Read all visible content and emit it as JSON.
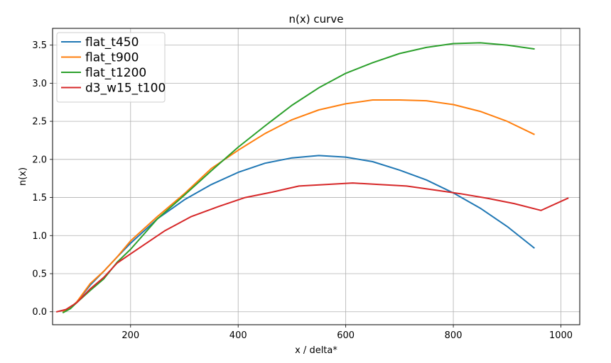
{
  "chart_data": {
    "type": "line",
    "title": "n(x) curve",
    "xlabel": "x / delta*",
    "ylabel": "n(x)",
    "xlim": [
      55,
      1035
    ],
    "ylim": [
      -0.17,
      3.72
    ],
    "xticks": [
      200,
      400,
      600,
      800,
      1000
    ],
    "yticks": [
      0.0,
      0.5,
      1.0,
      1.5,
      2.0,
      2.5,
      3.0,
      3.5
    ],
    "xtick_labels": [
      "200",
      "400",
      "600",
      "800",
      "1000"
    ],
    "ytick_labels": [
      "0.0",
      "0.5",
      "1.0",
      "1.5",
      "2.0",
      "2.5",
      "3.0",
      "3.5"
    ],
    "grid": true,
    "legend": "upper-left",
    "series": [
      {
        "name": "flat_t450",
        "color": "#1f77b4",
        "x": [
          75,
          88,
          100,
          125,
          150,
          175,
          200,
          250,
          300,
          350,
          400,
          450,
          500,
          550,
          600,
          650,
          700,
          750,
          800,
          850,
          900,
          950
        ],
        "y": [
          0.0,
          0.05,
          0.13,
          0.35,
          0.53,
          0.72,
          0.9,
          1.22,
          1.47,
          1.67,
          1.83,
          1.95,
          2.02,
          2.05,
          2.03,
          1.97,
          1.86,
          1.73,
          1.56,
          1.36,
          1.12,
          0.84
        ]
      },
      {
        "name": "flat_t900",
        "color": "#ff7f0e",
        "x": [
          75,
          88,
          100,
          125,
          150,
          175,
          200,
          250,
          300,
          350,
          400,
          450,
          500,
          550,
          600,
          650,
          700,
          750,
          800,
          850,
          900,
          950
        ],
        "y": [
          0.0,
          0.05,
          0.13,
          0.37,
          0.53,
          0.72,
          0.93,
          1.25,
          1.55,
          1.88,
          2.12,
          2.34,
          2.52,
          2.65,
          2.73,
          2.78,
          2.78,
          2.77,
          2.72,
          2.63,
          2.5,
          2.33
        ]
      },
      {
        "name": "flat_t1200",
        "color": "#2ca02c",
        "x": [
          75,
          88,
          100,
          125,
          150,
          175,
          200,
          250,
          300,
          350,
          400,
          450,
          500,
          550,
          600,
          650,
          700,
          750,
          800,
          850,
          900,
          950
        ],
        "y": [
          -0.01,
          0.04,
          0.12,
          0.28,
          0.43,
          0.65,
          0.82,
          1.22,
          1.53,
          1.85,
          2.16,
          2.44,
          2.71,
          2.94,
          3.13,
          3.27,
          3.39,
          3.47,
          3.52,
          3.53,
          3.5,
          3.45
        ]
      },
      {
        "name": "d3_w15_t100",
        "color": "#d62728",
        "x": [
          63,
          80,
          100,
          125,
          150,
          175,
          200,
          263,
          313,
          363,
          413,
          463,
          513,
          563,
          613,
          663,
          713,
          763,
          813,
          863,
          913,
          963,
          1013
        ],
        "y": [
          0.0,
          0.03,
          0.12,
          0.3,
          0.45,
          0.64,
          0.76,
          1.06,
          1.25,
          1.38,
          1.5,
          1.57,
          1.65,
          1.67,
          1.69,
          1.67,
          1.65,
          1.6,
          1.55,
          1.49,
          1.42,
          1.33,
          1.49
        ]
      }
    ]
  }
}
